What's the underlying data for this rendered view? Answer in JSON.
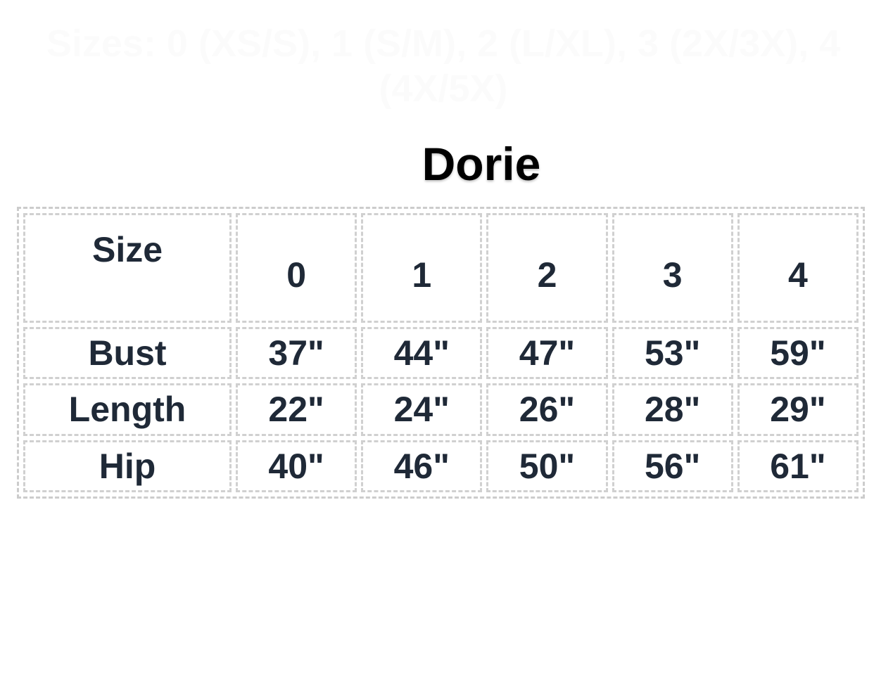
{
  "subtitle": "Sizes: 0 (XS/S), 1 (S/M), 2 (L/XL), 3 (2X/3X), 4 (4X/5X)",
  "title": "Dorie",
  "table": {
    "header": [
      "Size",
      "0",
      "1",
      "2",
      "3",
      "4"
    ],
    "rows": [
      [
        "Bust",
        "37\"",
        "44\"",
        "47\"",
        "53\"",
        "59\""
      ],
      [
        "Length",
        "22\"",
        "24\"",
        "26\"",
        "28\"",
        "29\""
      ],
      [
        "Hip",
        "40\"",
        "46\"",
        "50\"",
        "56\"",
        "61\""
      ]
    ]
  }
}
